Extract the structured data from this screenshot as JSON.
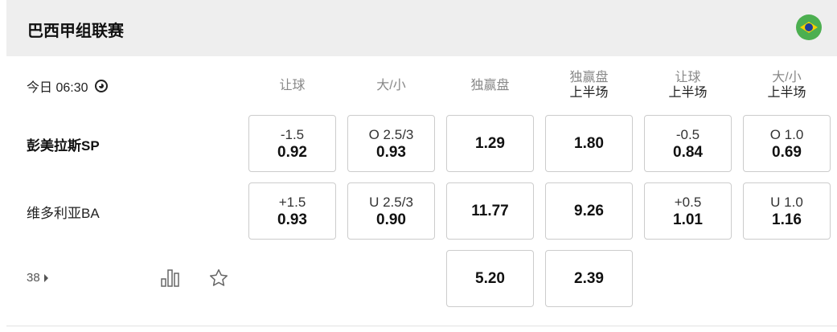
{
  "league": {
    "title": "巴西甲组联赛",
    "flag_icon": "brazil-flag-icon"
  },
  "match": {
    "time": "今日 06:30",
    "headers": [
      {
        "main": "让球",
        "sub": ""
      },
      {
        "main": "大/小",
        "sub": ""
      },
      {
        "main": "独赢盘",
        "sub": ""
      },
      {
        "main": "独赢盘",
        "sub": "上半场"
      },
      {
        "main": "让球",
        "sub": "上半场"
      },
      {
        "main": "大/小",
        "sub": "上半场"
      }
    ],
    "teams": [
      {
        "name": "彭美拉斯SP",
        "bold": true,
        "odds": [
          {
            "line": "-1.5",
            "odd": "0.92"
          },
          {
            "line": "O 2.5/3",
            "odd": "0.93"
          },
          {
            "line": "",
            "odd": "1.29"
          },
          {
            "line": "",
            "odd": "1.80"
          },
          {
            "line": "-0.5",
            "odd": "0.84"
          },
          {
            "line": "O 1.0",
            "odd": "0.69"
          }
        ]
      },
      {
        "name": "维多利亚BA",
        "bold": false,
        "odds": [
          {
            "line": "+1.5",
            "odd": "0.93"
          },
          {
            "line": "U 2.5/3",
            "odd": "0.90"
          },
          {
            "line": "",
            "odd": "11.77"
          },
          {
            "line": "",
            "odd": "9.26"
          },
          {
            "line": "+0.5",
            "odd": "1.01"
          },
          {
            "line": "U 1.0",
            "odd": "1.16"
          }
        ]
      }
    ],
    "draw": {
      "odds": [
        {
          "odd": "5.20"
        },
        {
          "odd": "2.39"
        }
      ]
    },
    "more_markets": "38"
  }
}
